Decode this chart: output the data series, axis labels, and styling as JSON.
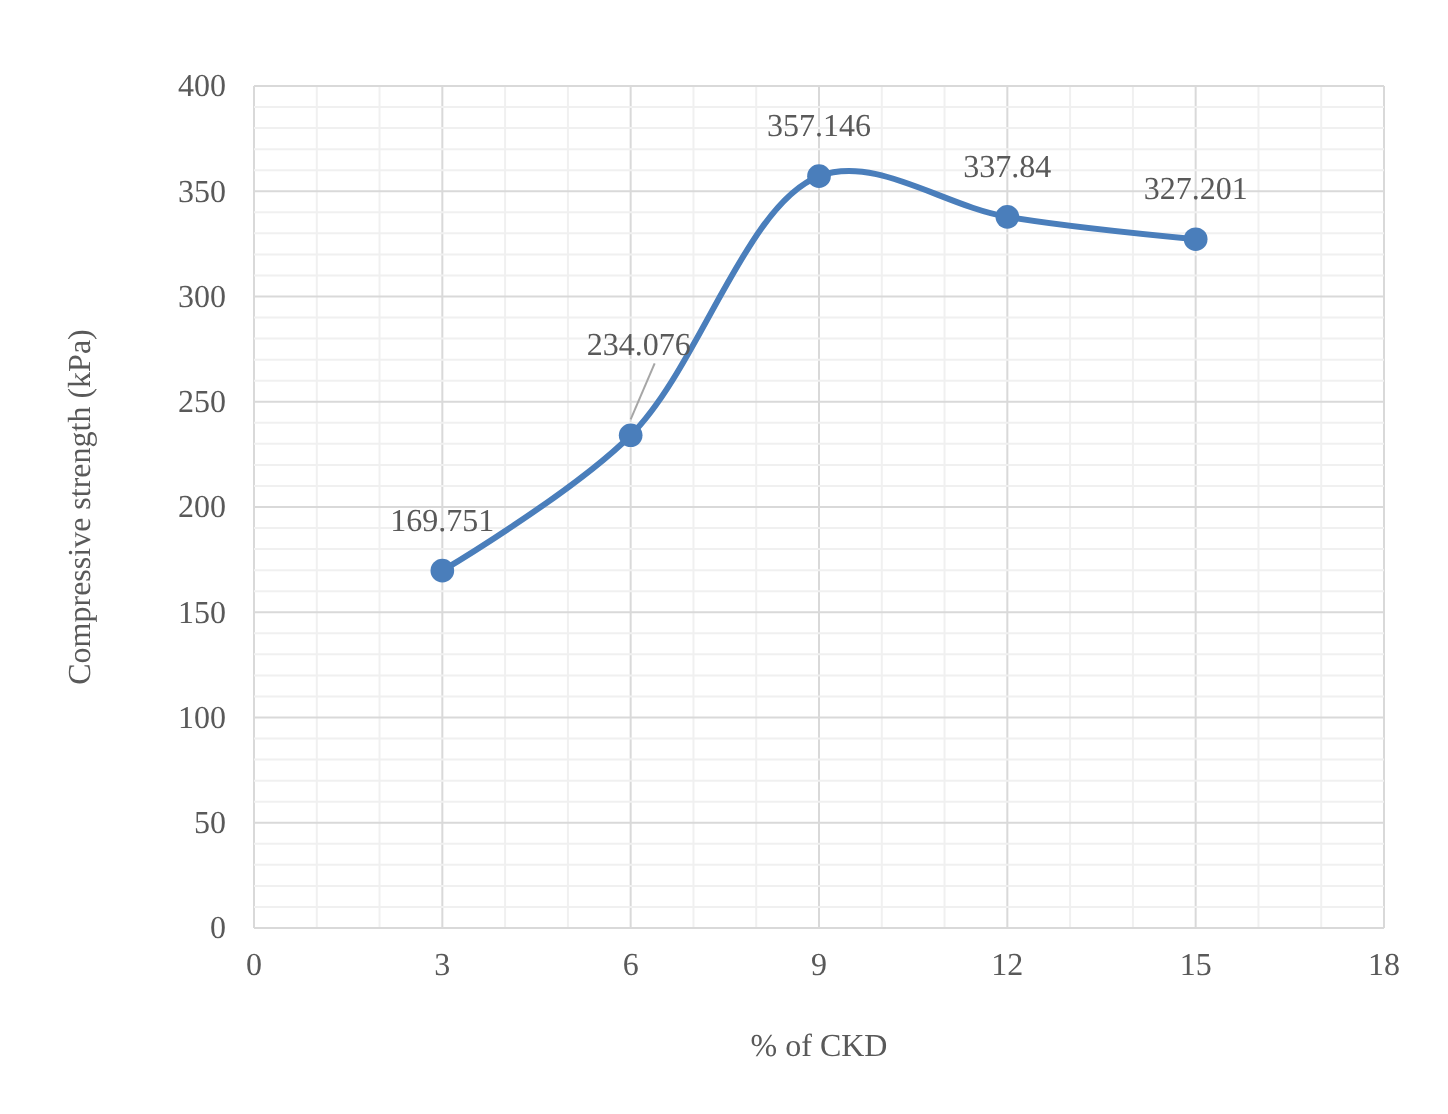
{
  "chart_data": {
    "type": "line",
    "xlabel": "% of CKD",
    "ylabel": "Compressive strength (kPa)",
    "x": [
      3,
      6,
      9,
      12,
      15
    ],
    "series": [
      {
        "color": "#4a7ebb",
        "values": [
          169.751,
          234.076,
          357.146,
          337.84,
          327.201
        ]
      }
    ],
    "xlim": [
      0,
      18
    ],
    "xticks": [
      0,
      3,
      6,
      9,
      12,
      15,
      18
    ],
    "ylim": [
      0,
      400
    ],
    "yticks": [
      0,
      50,
      100,
      150,
      200,
      250,
      300,
      350,
      400
    ],
    "grid": true,
    "marker": "circle",
    "data_labels": true
  }
}
